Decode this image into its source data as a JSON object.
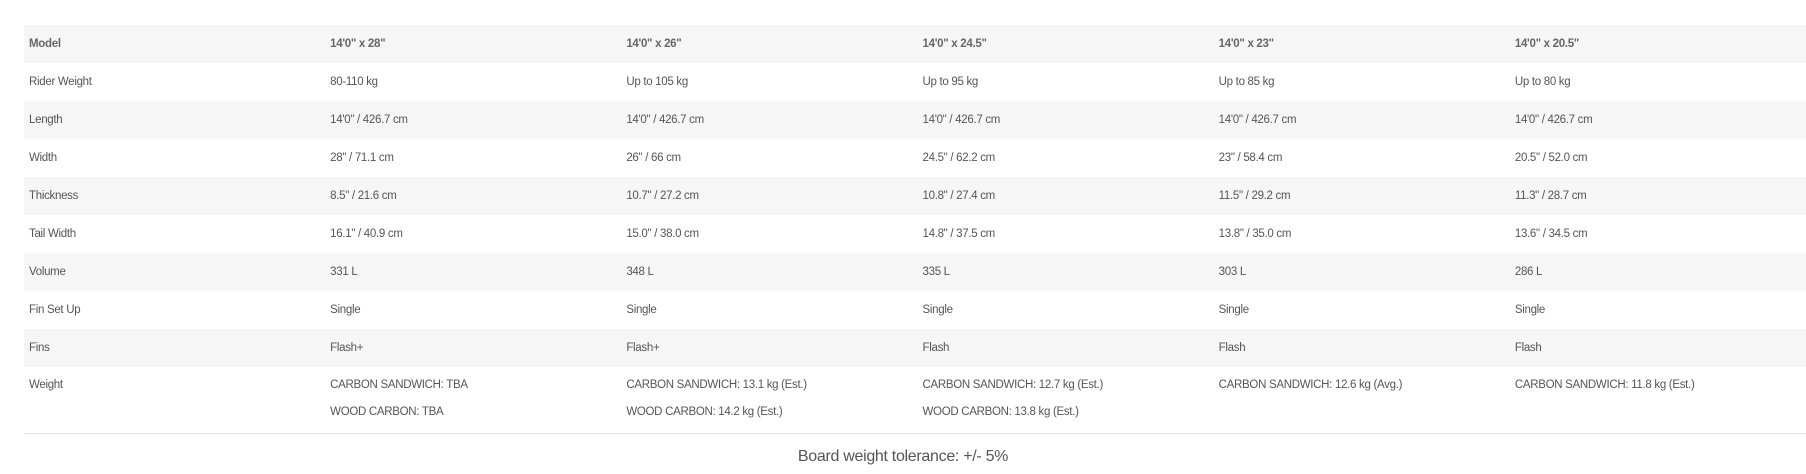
{
  "table": {
    "header": {
      "label": "Model",
      "values": [
        "14'0\" x 28\"",
        "14'0\" x 26\"",
        "14'0\" x 24.5\"",
        "14'0\" x 23\"",
        "14'0\" x 20.5\""
      ]
    },
    "rows": [
      {
        "label": "Rider Weight",
        "values": [
          "80-110 kg",
          "Up to 105 kg",
          "Up to 95 kg",
          "Up to 85 kg",
          "Up to 80 kg"
        ]
      },
      {
        "label": "Length",
        "values": [
          "14'0\" / 426.7 cm",
          "14'0\" / 426.7 cm",
          "14'0\" / 426.7 cm",
          "14'0\" / 426.7 cm",
          "14'0\" / 426.7 cm"
        ]
      },
      {
        "label": "Width",
        "values": [
          "28\" / 71.1 cm",
          "26\" / 66 cm",
          "24.5\" / 62.2 cm",
          "23\" / 58.4 cm",
          "20.5\" / 52.0 cm"
        ]
      },
      {
        "label": "Thickness",
        "values": [
          "8.5\" / 21.6 cm",
          "10.7\" / 27.2 cm",
          "10.8\" / 27.4 cm",
          "11.5\" / 29.2 cm",
          "11.3\" / 28.7 cm"
        ]
      },
      {
        "label": "Tail Width",
        "values": [
          "16.1\" / 40.9 cm",
          "15.0\" / 38.0 cm",
          "14.8\" / 37.5 cm",
          "13.8\" / 35.0 cm",
          "13.6\" / 34.5 cm"
        ]
      },
      {
        "label": "Volume",
        "values": [
          "331 L",
          "348 L",
          "335 L",
          "303 L",
          "286 L"
        ]
      },
      {
        "label": "Fin Set Up",
        "values": [
          "Single",
          "Single",
          "Single",
          "Single",
          "Single"
        ]
      },
      {
        "label": "Fins",
        "values": [
          "Flash+",
          "Flash+",
          "Flash",
          "Flash",
          "Flash"
        ]
      }
    ],
    "weight": {
      "label": "Weight",
      "values": [
        [
          "CARBON SANDWICH: TBA",
          "WOOD CARBON: TBA"
        ],
        [
          "CARBON SANDWICH: 13.1 kg (Est.)",
          "WOOD CARBON: 14.2 kg (Est.)"
        ],
        [
          "CARBON SANDWICH: 12.7 kg (Est.)",
          "WOOD CARBON: 13.8 kg (Est.)"
        ],
        [
          "CARBON SANDWICH: 12.6 kg (Avg.)"
        ],
        [
          "CARBON SANDWICH: 11.8 kg (Est.)"
        ]
      ]
    }
  },
  "footer": {
    "note": "Board weight tolerance: +/- 5%"
  }
}
